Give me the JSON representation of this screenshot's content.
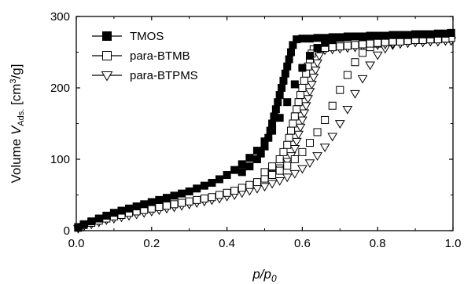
{
  "chart_data": {
    "type": "scatter",
    "xlabel": {
      "main": "p/p",
      "sub": "0"
    },
    "ylabel": {
      "main": "Volume ",
      "italic": "V",
      "sub": "Ads.",
      "unit_open": " [cm",
      "sup": "3",
      "unit_close": "/g]"
    },
    "xlim": [
      0.0,
      1.0
    ],
    "ylim": [
      0,
      300
    ],
    "xticks": [
      "0.0",
      "0.2",
      "0.4",
      "0.6",
      "0.8",
      "1.0"
    ],
    "yticks": [
      "0",
      "100",
      "200",
      "300"
    ],
    "legend_position": "top-left",
    "grid": false,
    "series": [
      {
        "name": "TMOS",
        "marker": "filled-square",
        "color": "#000000",
        "adsorption": [
          [
            0.005,
            5
          ],
          [
            0.02,
            9
          ],
          [
            0.04,
            13
          ],
          [
            0.06,
            17
          ],
          [
            0.08,
            21
          ],
          [
            0.1,
            25
          ],
          [
            0.12,
            28
          ],
          [
            0.14,
            31
          ],
          [
            0.16,
            34
          ],
          [
            0.18,
            37
          ],
          [
            0.2,
            40
          ],
          [
            0.22,
            43
          ],
          [
            0.24,
            46
          ],
          [
            0.26,
            49
          ],
          [
            0.28,
            52
          ],
          [
            0.3,
            55
          ],
          [
            0.32,
            59
          ],
          [
            0.34,
            63
          ],
          [
            0.36,
            67
          ],
          [
            0.38,
            72
          ],
          [
            0.4,
            78
          ],
          [
            0.42,
            85
          ],
          [
            0.44,
            93
          ],
          [
            0.46,
            102
          ],
          [
            0.48,
            112
          ],
          [
            0.5,
            125
          ],
          [
            0.52,
            140
          ],
          [
            0.54,
            158
          ],
          [
            0.56,
            180
          ],
          [
            0.58,
            205
          ],
          [
            0.6,
            228
          ],
          [
            0.62,
            245
          ],
          [
            0.64,
            256
          ],
          [
            0.66,
            263
          ],
          [
            0.68,
            267
          ],
          [
            0.7,
            270
          ],
          [
            0.72,
            271
          ],
          [
            0.74,
            272
          ],
          [
            0.76,
            272
          ],
          [
            0.78,
            273
          ],
          [
            0.8,
            273
          ],
          [
            0.82,
            273
          ],
          [
            0.84,
            274
          ],
          [
            0.86,
            274
          ],
          [
            0.88,
            274
          ],
          [
            0.9,
            275
          ],
          [
            0.92,
            275
          ],
          [
            0.94,
            275
          ],
          [
            0.96,
            276
          ],
          [
            0.98,
            276
          ],
          [
            0.995,
            277
          ]
        ],
        "desorption": [
          [
            0.995,
            277
          ],
          [
            0.98,
            276
          ],
          [
            0.96,
            276
          ],
          [
            0.94,
            275
          ],
          [
            0.92,
            275
          ],
          [
            0.9,
            275
          ],
          [
            0.88,
            274
          ],
          [
            0.86,
            274
          ],
          [
            0.84,
            274
          ],
          [
            0.82,
            273
          ],
          [
            0.8,
            273
          ],
          [
            0.78,
            273
          ],
          [
            0.76,
            272
          ],
          [
            0.74,
            272
          ],
          [
            0.72,
            272
          ],
          [
            0.7,
            271
          ],
          [
            0.68,
            271
          ],
          [
            0.66,
            270
          ],
          [
            0.64,
            270
          ],
          [
            0.62,
            269
          ],
          [
            0.6,
            269
          ],
          [
            0.585,
            268
          ],
          [
            0.575,
            260
          ],
          [
            0.57,
            250
          ],
          [
            0.565,
            240
          ],
          [
            0.56,
            230
          ],
          [
            0.555,
            220
          ],
          [
            0.55,
            210
          ],
          [
            0.545,
            200
          ],
          [
            0.54,
            190
          ],
          [
            0.535,
            180
          ],
          [
            0.53,
            170
          ],
          [
            0.525,
            160
          ],
          [
            0.52,
            150
          ],
          [
            0.515,
            140
          ],
          [
            0.51,
            130
          ],
          [
            0.5,
            118
          ],
          [
            0.49,
            108
          ],
          [
            0.48,
            100
          ],
          [
            0.46,
            90
          ],
          [
            0.44,
            82
          ]
        ]
      },
      {
        "name": "para-BTMB",
        "marker": "open-square",
        "color": "#000000",
        "adsorption": [
          [
            0.005,
            4
          ],
          [
            0.02,
            8
          ],
          [
            0.04,
            11
          ],
          [
            0.06,
            14
          ],
          [
            0.08,
            17
          ],
          [
            0.1,
            20
          ],
          [
            0.12,
            22
          ],
          [
            0.14,
            25
          ],
          [
            0.16,
            27
          ],
          [
            0.18,
            29
          ],
          [
            0.2,
            31
          ],
          [
            0.22,
            33
          ],
          [
            0.24,
            35
          ],
          [
            0.26,
            37
          ],
          [
            0.28,
            39
          ],
          [
            0.3,
            41
          ],
          [
            0.32,
            43
          ],
          [
            0.34,
            45
          ],
          [
            0.36,
            47
          ],
          [
            0.38,
            50
          ],
          [
            0.4,
            53
          ],
          [
            0.42,
            56
          ],
          [
            0.44,
            60
          ],
          [
            0.46,
            64
          ],
          [
            0.48,
            68
          ],
          [
            0.5,
            73
          ],
          [
            0.52,
            78
          ],
          [
            0.54,
            84
          ],
          [
            0.56,
            91
          ],
          [
            0.58,
            100
          ],
          [
            0.6,
            110
          ],
          [
            0.62,
            123
          ],
          [
            0.64,
            138
          ],
          [
            0.66,
            155
          ],
          [
            0.68,
            175
          ],
          [
            0.7,
            197
          ],
          [
            0.72,
            218
          ],
          [
            0.74,
            236
          ],
          [
            0.76,
            249
          ],
          [
            0.78,
            257
          ],
          [
            0.8,
            262
          ],
          [
            0.82,
            264
          ],
          [
            0.84,
            265
          ],
          [
            0.86,
            266
          ],
          [
            0.88,
            267
          ],
          [
            0.9,
            267
          ],
          [
            0.92,
            268
          ],
          [
            0.94,
            268
          ],
          [
            0.96,
            269
          ],
          [
            0.98,
            269
          ],
          [
            0.995,
            270
          ]
        ],
        "desorption": [
          [
            0.995,
            270
          ],
          [
            0.98,
            269
          ],
          [
            0.96,
            268
          ],
          [
            0.94,
            268
          ],
          [
            0.92,
            267
          ],
          [
            0.9,
            267
          ],
          [
            0.88,
            266
          ],
          [
            0.86,
            265
          ],
          [
            0.84,
            265
          ],
          [
            0.82,
            264
          ],
          [
            0.8,
            263
          ],
          [
            0.78,
            262
          ],
          [
            0.76,
            261
          ],
          [
            0.74,
            260
          ],
          [
            0.72,
            259
          ],
          [
            0.7,
            258
          ],
          [
            0.68,
            257
          ],
          [
            0.66,
            256
          ],
          [
            0.64,
            255
          ],
          [
            0.63,
            254
          ],
          [
            0.625,
            248
          ],
          [
            0.62,
            240
          ],
          [
            0.615,
            230
          ],
          [
            0.61,
            220
          ],
          [
            0.605,
            210
          ],
          [
            0.6,
            200
          ],
          [
            0.595,
            190
          ],
          [
            0.59,
            180
          ],
          [
            0.585,
            170
          ],
          [
            0.58,
            160
          ],
          [
            0.575,
            150
          ],
          [
            0.57,
            140
          ],
          [
            0.565,
            130
          ],
          [
            0.56,
            120
          ],
          [
            0.55,
            110
          ],
          [
            0.54,
            100
          ],
          [
            0.52,
            90
          ],
          [
            0.5,
            82
          ]
        ]
      },
      {
        "name": "para-BTPMS",
        "marker": "open-triangle-down",
        "color": "#000000",
        "adsorption": [
          [
            0.005,
            3
          ],
          [
            0.02,
            6
          ],
          [
            0.04,
            9
          ],
          [
            0.06,
            12
          ],
          [
            0.08,
            15
          ],
          [
            0.1,
            17
          ],
          [
            0.12,
            19
          ],
          [
            0.14,
            21
          ],
          [
            0.16,
            23
          ],
          [
            0.18,
            25
          ],
          [
            0.2,
            27
          ],
          [
            0.22,
            29
          ],
          [
            0.24,
            31
          ],
          [
            0.26,
            33
          ],
          [
            0.28,
            35
          ],
          [
            0.3,
            37
          ],
          [
            0.32,
            39
          ],
          [
            0.34,
            41
          ],
          [
            0.36,
            43
          ],
          [
            0.38,
            45
          ],
          [
            0.4,
            48
          ],
          [
            0.42,
            50
          ],
          [
            0.44,
            53
          ],
          [
            0.46,
            56
          ],
          [
            0.48,
            59
          ],
          [
            0.5,
            62
          ],
          [
            0.52,
            66
          ],
          [
            0.54,
            70
          ],
          [
            0.56,
            75
          ],
          [
            0.58,
            80
          ],
          [
            0.6,
            87
          ],
          [
            0.62,
            95
          ],
          [
            0.64,
            105
          ],
          [
            0.66,
            117
          ],
          [
            0.68,
            132
          ],
          [
            0.7,
            150
          ],
          [
            0.72,
            170
          ],
          [
            0.74,
            192
          ],
          [
            0.76,
            213
          ],
          [
            0.78,
            232
          ],
          [
            0.8,
            246
          ],
          [
            0.82,
            255
          ],
          [
            0.84,
            260
          ],
          [
            0.86,
            262
          ],
          [
            0.88,
            263
          ],
          [
            0.9,
            264
          ],
          [
            0.92,
            264
          ],
          [
            0.94,
            265
          ],
          [
            0.96,
            265
          ],
          [
            0.98,
            266
          ],
          [
            0.995,
            266
          ]
        ],
        "desorption": [
          [
            0.995,
            266
          ],
          [
            0.98,
            266
          ],
          [
            0.96,
            265
          ],
          [
            0.94,
            265
          ],
          [
            0.92,
            264
          ],
          [
            0.9,
            264
          ],
          [
            0.88,
            263
          ],
          [
            0.86,
            262
          ],
          [
            0.84,
            262
          ],
          [
            0.82,
            261
          ],
          [
            0.8,
            260
          ],
          [
            0.78,
            259
          ],
          [
            0.76,
            258
          ],
          [
            0.74,
            257
          ],
          [
            0.72,
            256
          ],
          [
            0.7,
            255
          ],
          [
            0.68,
            254
          ],
          [
            0.66,
            253
          ],
          [
            0.65,
            252
          ],
          [
            0.645,
            245
          ],
          [
            0.64,
            235
          ],
          [
            0.635,
            225
          ],
          [
            0.63,
            215
          ],
          [
            0.625,
            205
          ],
          [
            0.62,
            195
          ],
          [
            0.615,
            185
          ],
          [
            0.61,
            175
          ],
          [
            0.605,
            165
          ],
          [
            0.6,
            155
          ],
          [
            0.595,
            145
          ],
          [
            0.59,
            135
          ],
          [
            0.585,
            125
          ],
          [
            0.58,
            115
          ],
          [
            0.57,
            105
          ],
          [
            0.56,
            97
          ],
          [
            0.54,
            88
          ],
          [
            0.52,
            80
          ]
        ]
      }
    ]
  }
}
